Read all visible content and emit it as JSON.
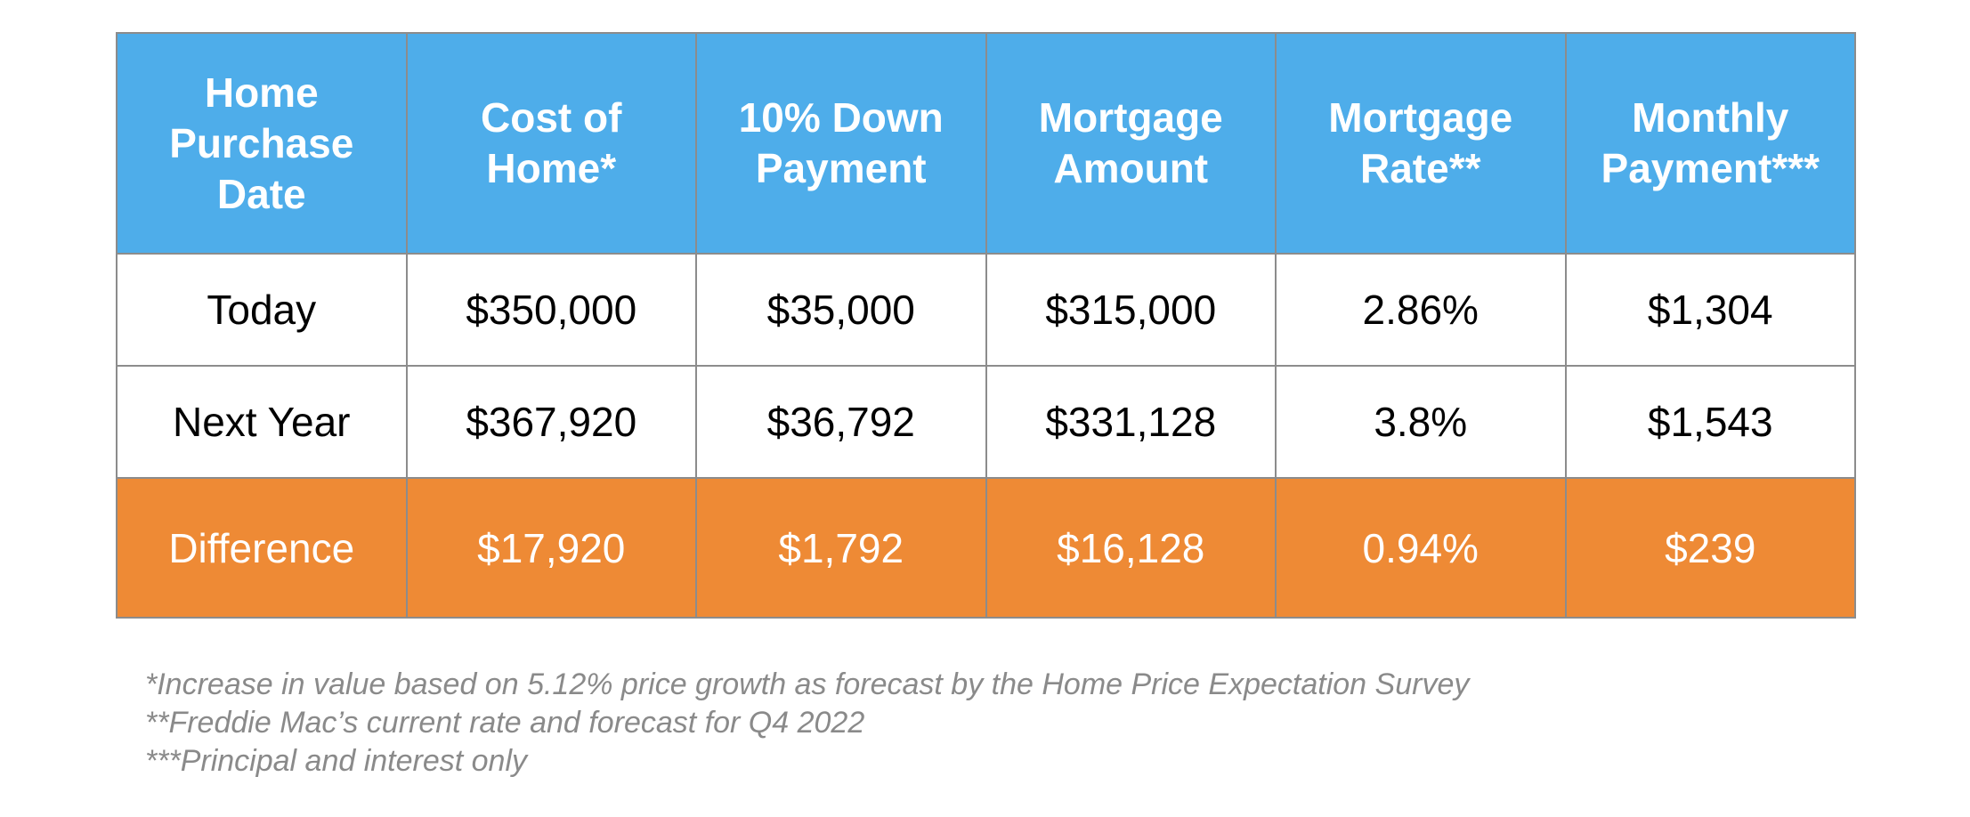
{
  "colors": {
    "header_bg": "#4eadea",
    "difference_bg": "#ee8a35",
    "body_bg": "#ffffff",
    "border": "#8c8c8c",
    "footnote_text": "#8a8a8a"
  },
  "chart_data": {
    "type": "table",
    "columns": [
      "Home Purchase Date",
      "Cost of Home*",
      "10% Down Payment",
      "Mortgage Amount",
      "Mortgage Rate**",
      "Monthly Payment***"
    ],
    "rows": [
      {
        "style": "data",
        "cells": [
          "Today",
          "$350,000",
          "$35,000",
          "$315,000",
          "2.86%",
          "$1,304"
        ]
      },
      {
        "style": "data",
        "cells": [
          "Next Year",
          "$367,920",
          "$36,792",
          "$331,128",
          "3.8%",
          "$1,543"
        ]
      },
      {
        "style": "difference",
        "cells": [
          "Difference",
          "$17,920",
          "$1,792",
          "$16,128",
          "0.94%",
          "$239"
        ]
      }
    ]
  },
  "footnotes": [
    "*Increase in value based on 5.12% price growth as forecast by the Home Price Expectation Survey",
    "**Freddie Mac’s current rate and forecast for Q4 2022",
    "***Principal and interest only"
  ]
}
